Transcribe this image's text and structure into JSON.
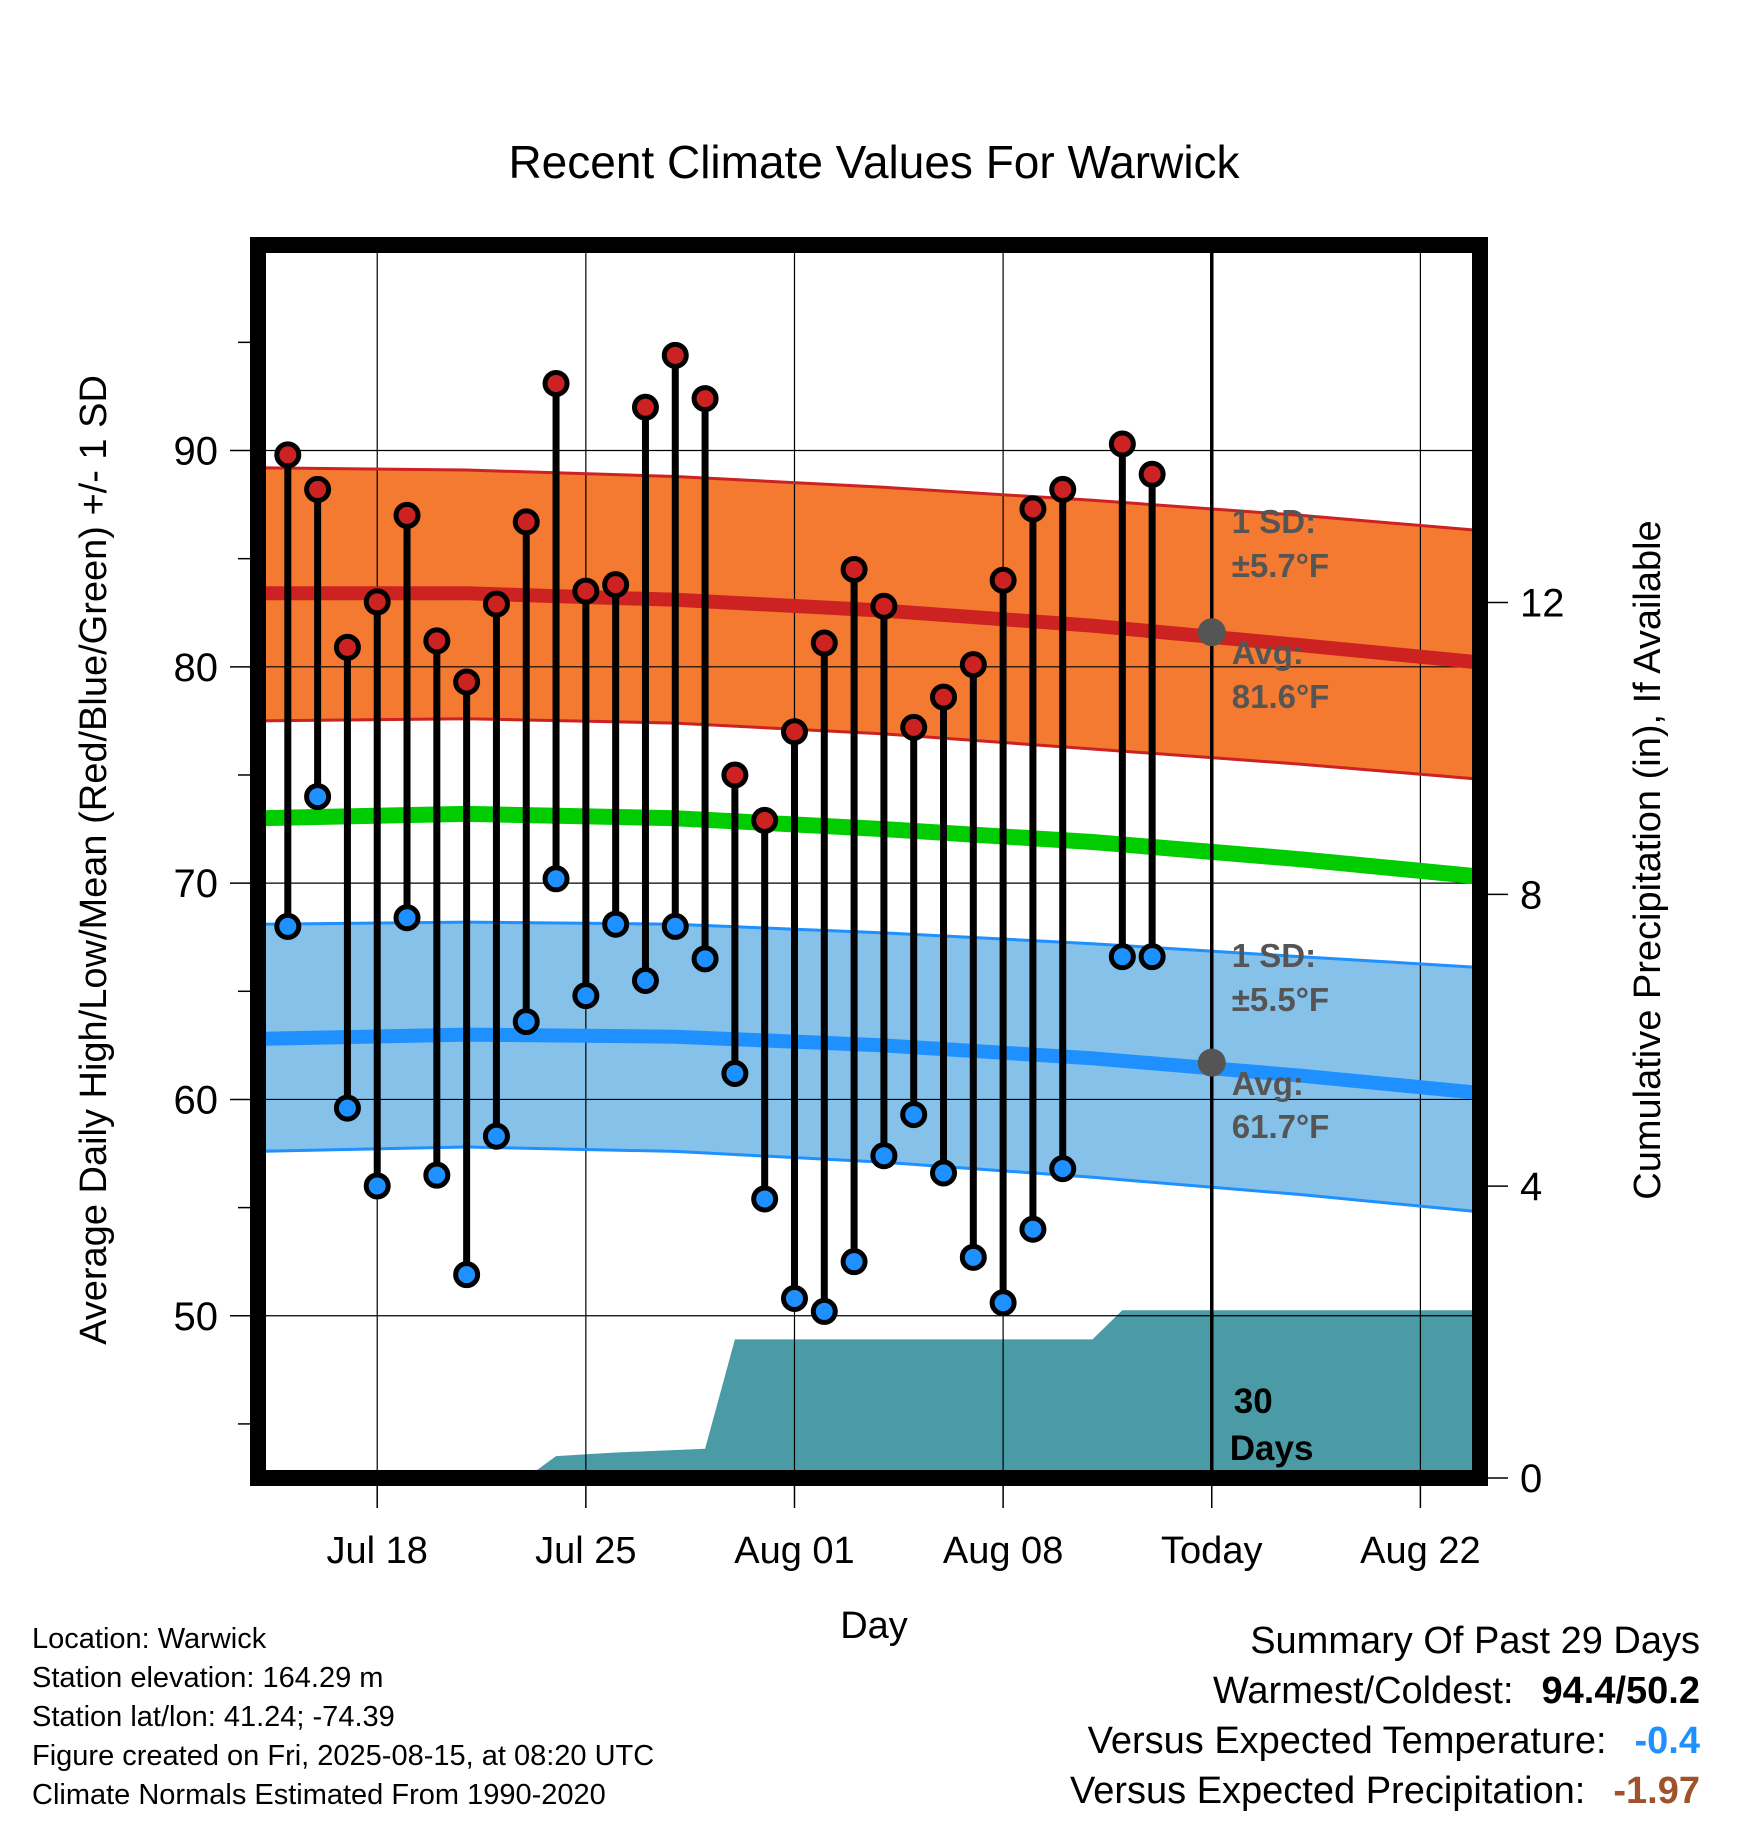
{
  "chart_data": {
    "type": "line",
    "title": "Recent Climate Values For Warwick",
    "xlabel": "Day",
    "ylabel": "Average Daily High/Low/Mean (Red/Blue/Green) +/- 1 SD",
    "y2label": "Cumulative Precipitation (in), If Available",
    "ylim": [
      42.5,
      99.5
    ],
    "y2lim": [
      0,
      16.9
    ],
    "xlim": [
      "2025-07-14",
      "2025-08-24"
    ],
    "x_ticks": [
      {
        "date": "2025-07-18",
        "label": "Jul 18"
      },
      {
        "date": "2025-07-25",
        "label": "Jul 25"
      },
      {
        "date": "2025-08-01",
        "label": "Aug 01"
      },
      {
        "date": "2025-08-08",
        "label": "Aug 08"
      },
      {
        "date": "2025-08-15",
        "label": "Today"
      },
      {
        "date": "2025-08-22",
        "label": "Aug 22"
      }
    ],
    "y_ticks": [
      50,
      60,
      70,
      80,
      90
    ],
    "y2_ticks": [
      0,
      4,
      8,
      12
    ],
    "grid": true,
    "colors": {
      "high": "#cc2222",
      "low": "#1e90ff",
      "mean": "#00cc00",
      "high_band": "#f37a30",
      "low_band": "#85c1e8",
      "precip": "#4a9ba5",
      "marker": "#555555"
    },
    "daily": [
      {
        "date": "2025-07-15",
        "high": 89.8,
        "low": 68.0
      },
      {
        "date": "2025-07-16",
        "high": 88.2,
        "low": 74.0
      },
      {
        "date": "2025-07-17",
        "high": 80.9,
        "low": 59.6
      },
      {
        "date": "2025-07-18",
        "high": 83.0,
        "low": 56.0
      },
      {
        "date": "2025-07-19",
        "high": 87.0,
        "low": 68.4
      },
      {
        "date": "2025-07-20",
        "high": 81.2,
        "low": 56.5
      },
      {
        "date": "2025-07-21",
        "high": 79.3,
        "low": 51.9
      },
      {
        "date": "2025-07-22",
        "high": 82.9,
        "low": 58.3
      },
      {
        "date": "2025-07-23",
        "high": 86.7,
        "low": 63.6
      },
      {
        "date": "2025-07-24",
        "high": 93.1,
        "low": 70.2
      },
      {
        "date": "2025-07-25",
        "high": 83.5,
        "low": 64.8
      },
      {
        "date": "2025-07-26",
        "high": 83.8,
        "low": 68.1
      },
      {
        "date": "2025-07-27",
        "high": 92.0,
        "low": 65.5
      },
      {
        "date": "2025-07-28",
        "high": 94.4,
        "low": 68.0
      },
      {
        "date": "2025-07-29",
        "high": 92.4,
        "low": 66.5
      },
      {
        "date": "2025-07-30",
        "high": 75.0,
        "low": 61.2
      },
      {
        "date": "2025-07-31",
        "high": 72.9,
        "low": 55.4
      },
      {
        "date": "2025-08-01",
        "high": 77.0,
        "low": 50.8
      },
      {
        "date": "2025-08-02",
        "high": 81.1,
        "low": 50.2
      },
      {
        "date": "2025-08-03",
        "high": 84.5,
        "low": 52.5
      },
      {
        "date": "2025-08-04",
        "high": 82.8,
        "low": 57.4
      },
      {
        "date": "2025-08-05",
        "high": 77.2,
        "low": 59.3
      },
      {
        "date": "2025-08-06",
        "high": 78.6,
        "low": 56.6
      },
      {
        "date": "2025-08-07",
        "high": 80.1,
        "low": 52.7
      },
      {
        "date": "2025-08-08",
        "high": 84.0,
        "low": 50.6
      },
      {
        "date": "2025-08-09",
        "high": 87.3,
        "low": 54.0
      },
      {
        "date": "2025-08-10",
        "high": 88.2,
        "low": 56.8
      },
      {
        "date": "2025-08-12",
        "high": 90.3,
        "low": 66.6
      },
      {
        "date": "2025-08-13",
        "high": 88.9,
        "low": 66.6
      }
    ],
    "normals": {
      "dates": [
        "2025-07-14",
        "2025-07-21",
        "2025-07-28",
        "2025-08-04",
        "2025-08-11",
        "2025-08-18",
        "2025-08-24"
      ],
      "high_mean": [
        83.4,
        83.4,
        83.1,
        82.6,
        81.9,
        81.0,
        80.2
      ],
      "high_upper": [
        89.2,
        89.1,
        88.8,
        88.3,
        87.7,
        87.0,
        86.3
      ],
      "high_lower": [
        77.5,
        77.6,
        77.4,
        76.9,
        76.2,
        75.5,
        74.8
      ],
      "low_mean": [
        62.8,
        63.0,
        62.9,
        62.5,
        61.9,
        61.1,
        60.3
      ],
      "low_upper": [
        68.1,
        68.2,
        68.1,
        67.7,
        67.2,
        66.6,
        66.1
      ],
      "low_lower": [
        57.6,
        57.8,
        57.6,
        57.1,
        56.4,
        55.6,
        54.8
      ],
      "avg_mean": [
        73.0,
        73.2,
        73.0,
        72.5,
        71.9,
        71.1,
        70.3
      ]
    },
    "precip_cumulative": {
      "dates": [
        "2025-07-23",
        "2025-07-24",
        "2025-07-26",
        "2025-07-29",
        "2025-07-30",
        "2025-08-11",
        "2025-08-12",
        "2025-08-24"
      ],
      "values": [
        0.0,
        0.3,
        0.35,
        0.4,
        1.9,
        1.9,
        2.3,
        2.3
      ]
    },
    "annotations": {
      "high_sd_label": "1 SD:",
      "high_sd_value": "±5.7°F",
      "high_avg_label": "Avg:",
      "high_avg_value": "81.6°F",
      "low_sd_label": "1 SD:",
      "low_sd_value": "±5.5°F",
      "low_avg_label": "Avg:",
      "low_avg_value": "61.7°F",
      "days_count": "30",
      "days_label": "Days",
      "high_avg_today": 81.6,
      "low_avg_today": 61.7
    }
  },
  "metadata": {
    "location": "Location: Warwick",
    "elevation": "Station elevation: 164.29 m",
    "latlon": "Station lat/lon: 41.24; -74.39",
    "created": "Figure created on Fri, 2025-08-15, at 08:20 UTC",
    "normals": "Climate Normals Estimated From 1990-2020"
  },
  "summary": {
    "title": "Summary Of Past 29 Days",
    "warmest_coldest_label": "Warmest/Coldest:",
    "warmest_coldest_value": "94.4/50.2",
    "temp_label": "Versus Expected Temperature:",
    "temp_value": "-0.4",
    "precip_label": "Versus Expected Precipitation:",
    "precip_value": "-1.97"
  }
}
